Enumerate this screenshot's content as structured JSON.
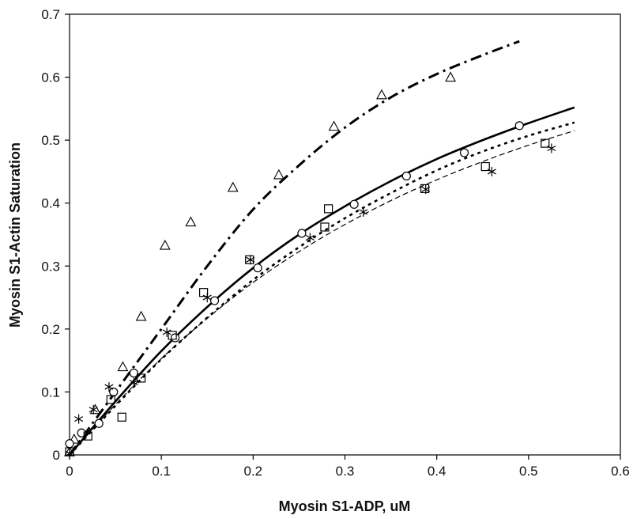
{
  "chart_data": {
    "type": "scatter",
    "title": "",
    "xlabel": "Myosin S1-ADP, uM",
    "ylabel": "Myosin S1-Actin Saturation",
    "xlim": [
      0,
      0.6
    ],
    "ylim": [
      0,
      0.7
    ],
    "x_ticks": [
      "0",
      "0.1",
      "0.2",
      "0.3",
      "0.4",
      "0.5",
      "0.6"
    ],
    "y_ticks": [
      "0",
      "0.1",
      "0.2",
      "0.3",
      "0.4",
      "0.5",
      "0.6",
      "0.7"
    ],
    "grid": false,
    "legend": "none",
    "series": [
      {
        "marker": "triangle",
        "points": [
          [
            0.0,
            0.005
          ],
          [
            0.005,
            0.025
          ],
          [
            0.028,
            0.072
          ],
          [
            0.058,
            0.14
          ],
          [
            0.078,
            0.22
          ],
          [
            0.104,
            0.333
          ],
          [
            0.132,
            0.37
          ],
          [
            0.178,
            0.425
          ],
          [
            0.228,
            0.445
          ],
          [
            0.288,
            0.522
          ],
          [
            0.34,
            0.572
          ],
          [
            0.415,
            0.6
          ]
        ],
        "fit": {
          "style": "dash-dot",
          "x": [
            0.0,
            0.05,
            0.1,
            0.15,
            0.2,
            0.25,
            0.3,
            0.35,
            0.4,
            0.45,
            0.49
          ],
          "y": [
            0.0,
            0.1,
            0.2,
            0.3,
            0.39,
            0.46,
            0.52,
            0.568,
            0.605,
            0.635,
            0.657
          ]
        }
      },
      {
        "marker": "circle",
        "points": [
          [
            0.0,
            0.018
          ],
          [
            0.013,
            0.035
          ],
          [
            0.032,
            0.05
          ],
          [
            0.048,
            0.1
          ],
          [
            0.07,
            0.13
          ],
          [
            0.115,
            0.186
          ],
          [
            0.158,
            0.245
          ],
          [
            0.205,
            0.297
          ],
          [
            0.253,
            0.352
          ],
          [
            0.31,
            0.398
          ],
          [
            0.367,
            0.443
          ],
          [
            0.43,
            0.48
          ],
          [
            0.49,
            0.523
          ]
        ],
        "fit": {
          "style": "solid",
          "x": [
            0.0,
            0.05,
            0.1,
            0.15,
            0.2,
            0.25,
            0.3,
            0.35,
            0.4,
            0.45,
            0.5,
            0.55
          ],
          "y": [
            0.0,
            0.085,
            0.165,
            0.235,
            0.297,
            0.35,
            0.395,
            0.435,
            0.47,
            0.5,
            0.527,
            0.552
          ]
        }
      },
      {
        "marker": "square",
        "points": [
          [
            0.0,
            0.005
          ],
          [
            0.02,
            0.03
          ],
          [
            0.045,
            0.088
          ],
          [
            0.057,
            0.06
          ],
          [
            0.078,
            0.122
          ],
          [
            0.112,
            0.19
          ],
          [
            0.146,
            0.258
          ],
          [
            0.196,
            0.31
          ],
          [
            0.278,
            0.362
          ],
          [
            0.282,
            0.391
          ],
          [
            0.387,
            0.423
          ],
          [
            0.453,
            0.458
          ],
          [
            0.518,
            0.495
          ]
        ],
        "fit": {
          "style": "dotted",
          "x": [
            0.0,
            0.05,
            0.1,
            0.15,
            0.2,
            0.25,
            0.3,
            0.35,
            0.4,
            0.45,
            0.5,
            0.55
          ],
          "y": [
            0.0,
            0.078,
            0.152,
            0.218,
            0.278,
            0.33,
            0.376,
            0.416,
            0.452,
            0.482,
            0.507,
            0.528
          ]
        }
      },
      {
        "marker": "asterisk",
        "points": [
          [
            0.0,
            0.002
          ],
          [
            0.01,
            0.057
          ],
          [
            0.026,
            0.072
          ],
          [
            0.043,
            0.108
          ],
          [
            0.07,
            0.115
          ],
          [
            0.106,
            0.195
          ],
          [
            0.15,
            0.25
          ],
          [
            0.197,
            0.31
          ],
          [
            0.262,
            0.345
          ],
          [
            0.32,
            0.386
          ],
          [
            0.388,
            0.422
          ],
          [
            0.46,
            0.45
          ],
          [
            0.525,
            0.487
          ]
        ],
        "fit": {
          "style": "thin-dashed",
          "x": [
            0.0,
            0.05,
            0.1,
            0.15,
            0.2,
            0.25,
            0.3,
            0.35,
            0.4,
            0.45,
            0.5,
            0.55
          ],
          "y": [
            0.0,
            0.08,
            0.153,
            0.217,
            0.274,
            0.323,
            0.366,
            0.404,
            0.437,
            0.466,
            0.492,
            0.515
          ]
        }
      }
    ]
  }
}
